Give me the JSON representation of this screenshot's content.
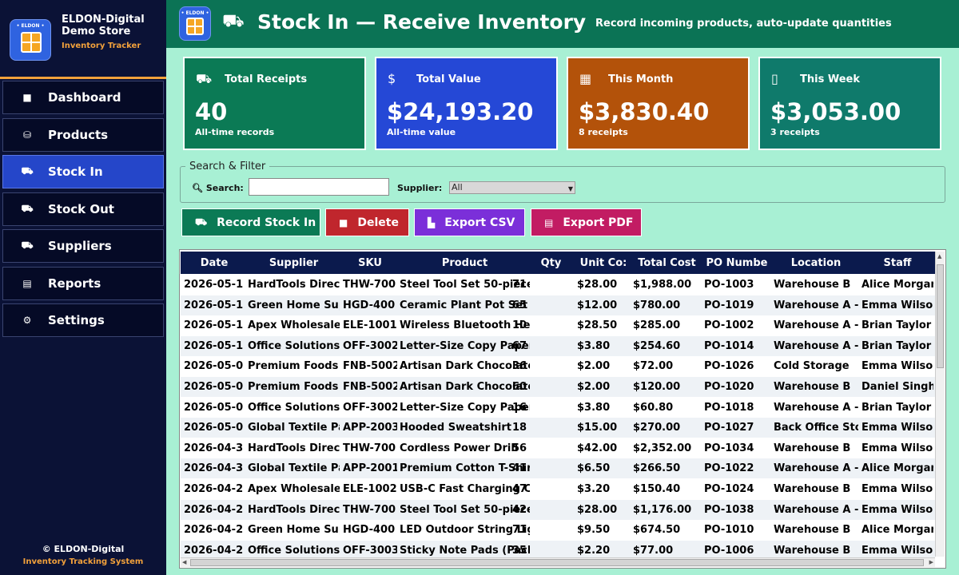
{
  "brand": {
    "logo_text": "• ELDON •",
    "name": "ELDON-Digital Demo Store",
    "subtitle": "Inventory Tracker"
  },
  "nav": [
    {
      "id": "dashboard",
      "label": "Dashboard",
      "icon": "■"
    },
    {
      "id": "products",
      "label": "Products",
      "icon": "⛁"
    },
    {
      "id": "stock-in",
      "label": "Stock In",
      "icon": "⛟"
    },
    {
      "id": "stock-out",
      "label": "Stock Out",
      "icon": "⛟"
    },
    {
      "id": "suppliers",
      "label": "Suppliers",
      "icon": "⛟"
    },
    {
      "id": "reports",
      "label": "Reports",
      "icon": "▤"
    },
    {
      "id": "settings",
      "label": "Settings",
      "icon": "⚙"
    }
  ],
  "footer": {
    "line1": "© ELDON-Digital",
    "line2": "Inventory Tracking System"
  },
  "header": {
    "logo_text": "• ELDON •",
    "icon": "⛟",
    "title": "Stock In — Receive Inventory",
    "subtitle": "Record incoming products, auto-update quantities"
  },
  "cards": [
    {
      "label": "Total Receipts",
      "value": "40",
      "sub": "All-time records",
      "icon": "⛟",
      "color": "#0b7a55"
    },
    {
      "label": "Total Value",
      "value": "$24,193.20",
      "sub": "All-time value",
      "icon": "$",
      "color": "#2548d6"
    },
    {
      "label": "This Month",
      "value": "$3,830.40",
      "sub": "8 receipts",
      "icon": "▦",
      "color": "#b3520a"
    },
    {
      "label": "This Week",
      "value": "$3,053.00",
      "sub": "3 receipts",
      "icon": "▯",
      "color": "#0f7a6b"
    }
  ],
  "filter": {
    "legend": "Search & Filter",
    "search_label": "Search:",
    "search_value": "",
    "supplier_label": "Supplier:",
    "supplier_value": "All"
  },
  "actions": [
    {
      "label": "Record Stock In",
      "icon": "⛟",
      "color": "#0b7a55"
    },
    {
      "label": "Delete",
      "icon": "■",
      "color": "#c0262d"
    },
    {
      "label": "Export CSV",
      "icon": "▙",
      "color": "#7b2fd9"
    },
    {
      "label": "Export PDF",
      "icon": "▤",
      "color": "#c21c63"
    }
  ],
  "table": {
    "columns": [
      "Date",
      "Supplier",
      "SKU",
      "Product",
      "Qty",
      "Unit Co:",
      "Total Cost",
      "PO Numbe",
      "Location",
      "Staff"
    ],
    "rows": [
      [
        "2026-05-1",
        "HardTools Direct",
        "THW-700",
        "Steel Tool Set 50-piece",
        "71",
        "$28.00",
        "$1,988.00",
        "PO-1003",
        "Warehouse B",
        "Alice Morgan"
      ],
      [
        "2026-05-1",
        "Green Home Sup",
        "HGD-400",
        "Ceramic Plant Pot Set",
        "65",
        "$12.00",
        "$780.00",
        "PO-1019",
        "Warehouse A - ",
        "Emma Wilson"
      ],
      [
        "2026-05-1",
        "Apex Wholesale",
        "ELE-1001",
        "Wireless Bluetooth Hea",
        "10",
        "$28.50",
        "$285.00",
        "PO-1002",
        "Warehouse A - ",
        "Brian Taylor"
      ],
      [
        "2026-05-1",
        "Office Solutions",
        "OFF-3002",
        "Letter-Size Copy Paper",
        "67",
        "$3.80",
        "$254.60",
        "PO-1014",
        "Warehouse A - ",
        "Brian Taylor"
      ],
      [
        "2026-05-0",
        "Premium Foods I",
        "FNB-5002",
        "Artisan Dark Chocolate",
        "36",
        "$2.00",
        "$72.00",
        "PO-1026",
        "Cold Storage",
        "Emma Wilson"
      ],
      [
        "2026-05-0",
        "Premium Foods I",
        "FNB-5002",
        "Artisan Dark Chocolate",
        "60",
        "$2.00",
        "$120.00",
        "PO-1020",
        "Warehouse B",
        "Daniel Singh"
      ],
      [
        "2026-05-0",
        "Office Solutions",
        "OFF-3002",
        "Letter-Size Copy Paper",
        "16",
        "$3.80",
        "$60.80",
        "PO-1018",
        "Warehouse A - ",
        "Brian Taylor"
      ],
      [
        "2026-05-0",
        "Global Textile Pa",
        "APP-2003",
        "Hooded Sweatshirt",
        "18",
        "$15.00",
        "$270.00",
        "PO-1027",
        "Back Office Sto",
        "Emma Wilson"
      ],
      [
        "2026-04-3",
        "HardTools Direct",
        "THW-700",
        "Cordless Power Drill",
        "56",
        "$42.00",
        "$2,352.00",
        "PO-1034",
        "Warehouse B",
        "Emma Wilson"
      ],
      [
        "2026-04-3",
        "Global Textile Pa",
        "APP-2001",
        "Premium Cotton T-Shirt",
        "41",
        "$6.50",
        "$266.50",
        "PO-1022",
        "Warehouse A - ",
        "Alice Morgan"
      ],
      [
        "2026-04-2",
        "Apex Wholesale",
        "ELE-1002",
        "USB-C Fast Charging Ca",
        "47",
        "$3.20",
        "$150.40",
        "PO-1024",
        "Warehouse B",
        "Emma Wilson"
      ],
      [
        "2026-04-2",
        "HardTools Direct",
        "THW-700",
        "Steel Tool Set 50-piece",
        "42",
        "$28.00",
        "$1,176.00",
        "PO-1038",
        "Warehouse A - ",
        "Emma Wilson"
      ],
      [
        "2026-04-2",
        "Green Home Sup",
        "HGD-400",
        "LED Outdoor String Lig",
        "71",
        "$9.50",
        "$674.50",
        "PO-1010",
        "Warehouse B",
        "Alice Morgan"
      ],
      [
        "2026-04-2",
        "Office Solutions",
        "OFF-3003",
        "Sticky Note Pads (Pack",
        "35",
        "$2.20",
        "$77.00",
        "PO-1006",
        "Warehouse B",
        "Emma Wilson"
      ]
    ]
  }
}
